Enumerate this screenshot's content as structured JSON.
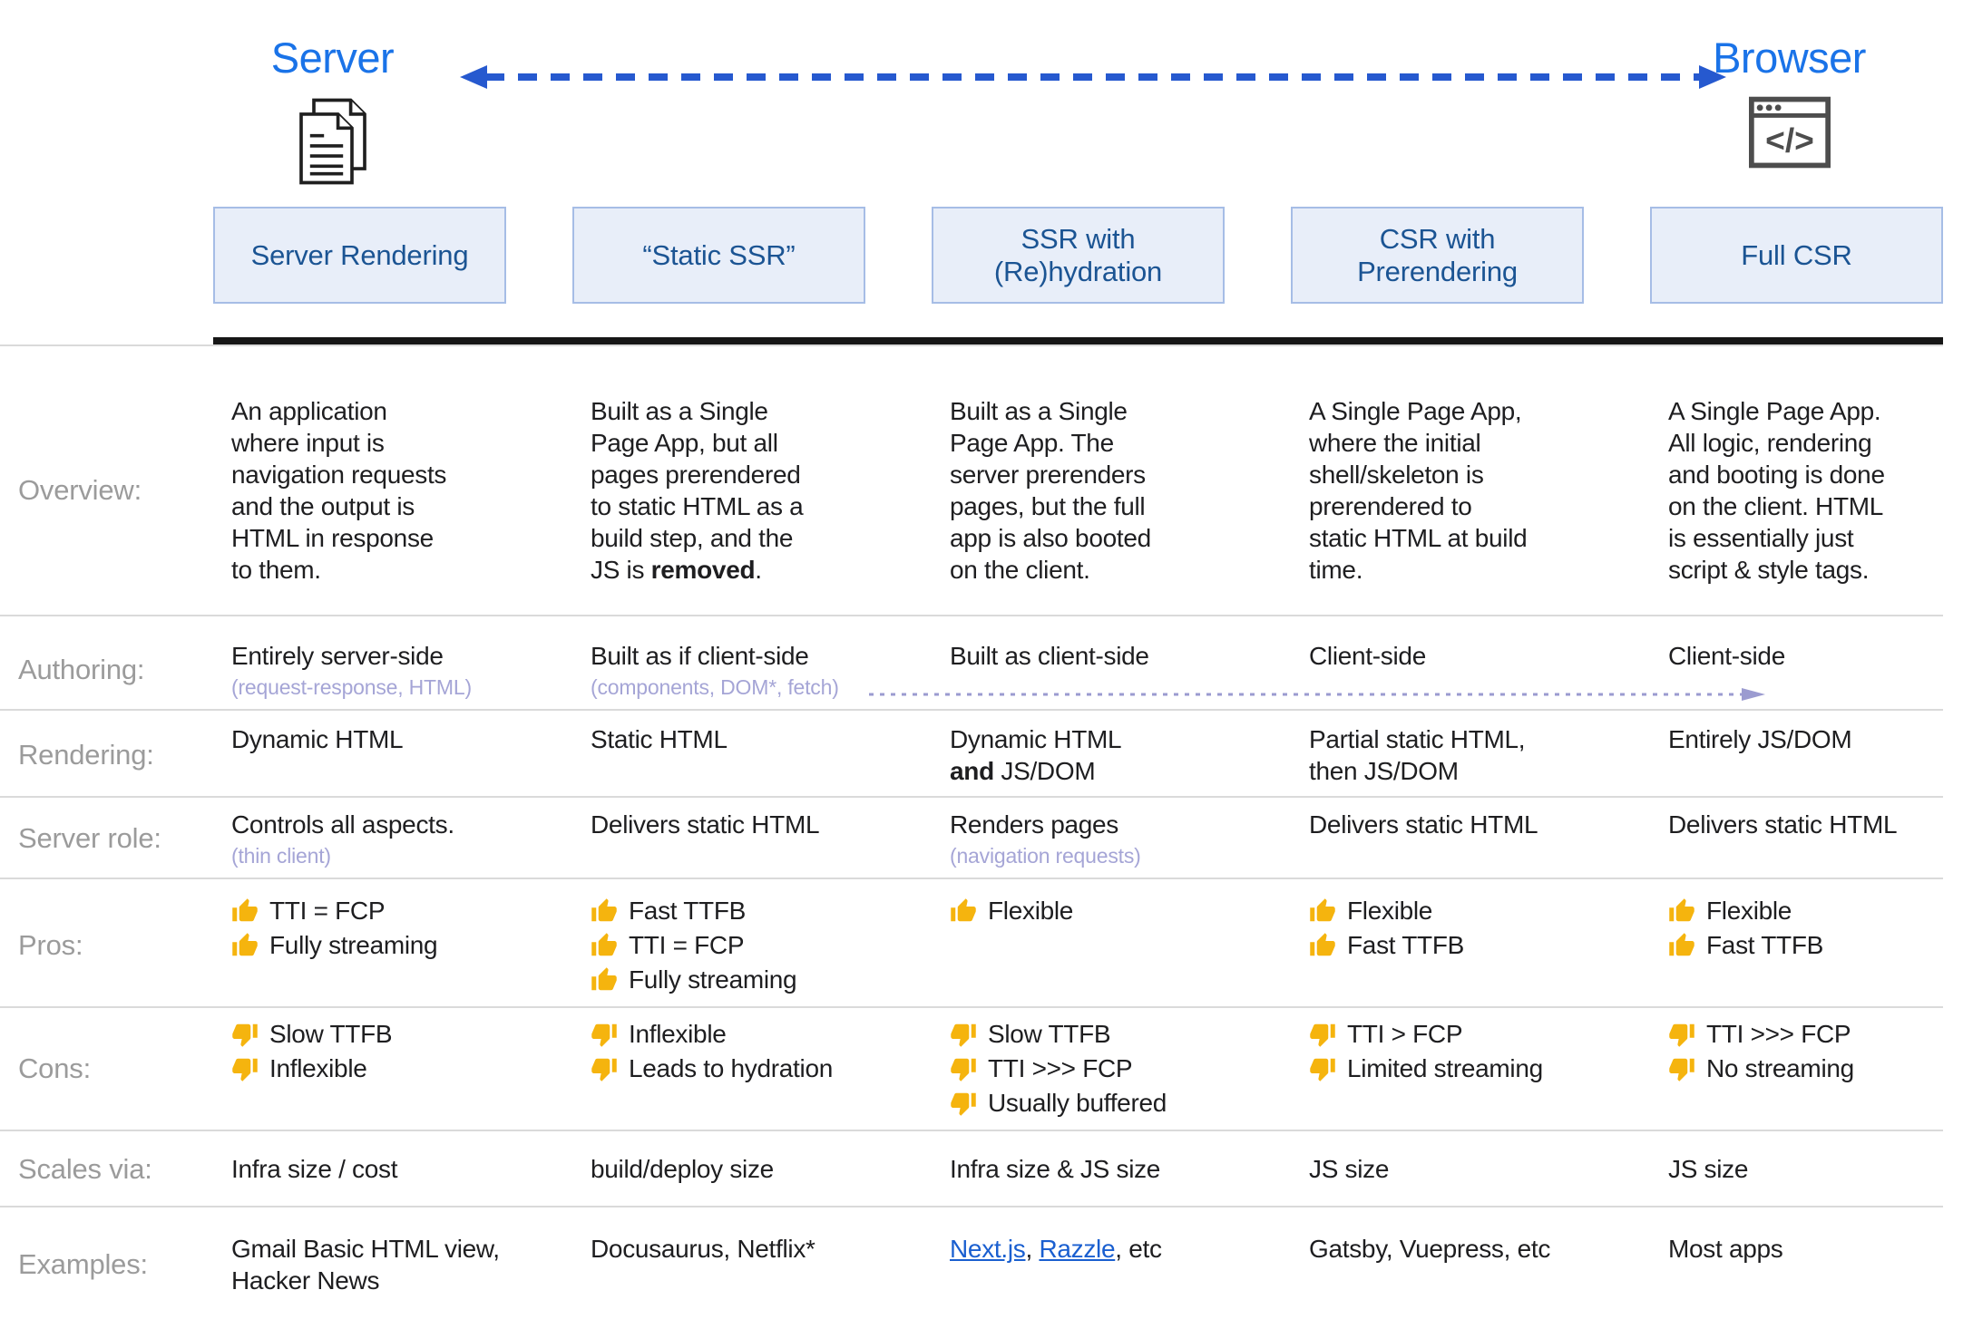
{
  "header": {
    "left_label": "Server",
    "right_label": "Browser"
  },
  "icons": {
    "server": "pages-icon",
    "browser": "browser-window-icon",
    "top_arrow": "double-headed-dashed-arrow",
    "authoring_arrow": "dashed-right-arrow",
    "pros": "thumbs-up-icon",
    "cons": "thumbs-down-icon"
  },
  "colors": {
    "accent_blue": "#1a73e8",
    "arrow_blue": "#2659cf",
    "header_box_fill": "#e8eef9",
    "header_box_border": "#a6bde6",
    "header_box_text": "#1b5493",
    "row_label_gray": "#9b9b9b",
    "body_text": "#1e1e20",
    "subtext_lavender": "#a5a5d6",
    "link_blue": "#1a5fd0",
    "thumb_gold": "#f5b40e",
    "divider_gray": "#dadada",
    "thick_line": "#161616"
  },
  "columns": [
    {
      "title": "Server Rendering"
    },
    {
      "title": "“Static SSR”"
    },
    {
      "title": "SSR with\n(Re)hydration"
    },
    {
      "title": "CSR with\nPrerendering"
    },
    {
      "title": "Full CSR"
    }
  ],
  "rows": [
    {
      "id": "overview",
      "label": "Overview:",
      "type": "text",
      "cells": [
        {
          "text": "An application\nwhere input is\nnavigation requests\nand the output is\nHTML in response\nto them."
        },
        {
          "text": "Built as a Single\nPage App, but all\npages prerendered\nto static HTML as a\nbuild step, and the\nJS is **removed**."
        },
        {
          "text": "Built as a Single\nPage App. The\nserver prerenders\npages, but the full\napp is also booted\non the client."
        },
        {
          "text": "A Single Page App,\nwhere the initial\nshell/skeleton is\nprerendered to\nstatic HTML at build\ntime."
        },
        {
          "text": "A Single Page App.\nAll logic, rendering\nand booting is done\non the client. HTML\nis essentially just\nscript & style tags."
        }
      ]
    },
    {
      "id": "authoring",
      "label": "Authoring:",
      "type": "text",
      "cells": [
        {
          "text": "Entirely server-side",
          "sub": "(request-response, HTML)"
        },
        {
          "text": "Built as if client-side",
          "sub": "(components, DOM*, fetch)"
        },
        {
          "text": "Built as client-side"
        },
        {
          "text": "Client-side"
        },
        {
          "text": "Client-side"
        }
      ]
    },
    {
      "id": "rendering",
      "label": "Rendering:",
      "type": "text",
      "cells": [
        {
          "text": "Dynamic HTML"
        },
        {
          "text": "Static HTML"
        },
        {
          "text": "Dynamic HTML\n**and** JS/DOM"
        },
        {
          "text": "Partial static HTML,\nthen JS/DOM"
        },
        {
          "text": "Entirely JS/DOM"
        }
      ]
    },
    {
      "id": "server_role",
      "label": "Server role:",
      "type": "text",
      "cells": [
        {
          "text": "Controls all aspects.",
          "sub": "(thin client)"
        },
        {
          "text": "Delivers static HTML"
        },
        {
          "text": "Renders pages",
          "sub": "(navigation requests)"
        },
        {
          "text": "Delivers static HTML"
        },
        {
          "text": "Delivers static HTML"
        }
      ]
    },
    {
      "id": "pros",
      "label": "Pros:",
      "type": "list",
      "icon": "thumbs-up-icon",
      "cells": [
        {
          "items": [
            "TTI = FCP",
            "Fully streaming"
          ]
        },
        {
          "items": [
            "Fast TTFB",
            "TTI = FCP",
            "Fully streaming"
          ]
        },
        {
          "items": [
            "Flexible"
          ]
        },
        {
          "items": [
            "Flexible",
            "Fast TTFB"
          ]
        },
        {
          "items": [
            "Flexible",
            "Fast TTFB"
          ]
        }
      ]
    },
    {
      "id": "cons",
      "label": "Cons:",
      "type": "list",
      "icon": "thumbs-down-icon",
      "cells": [
        {
          "items": [
            "Slow TTFB",
            "Inflexible"
          ]
        },
        {
          "items": [
            "Inflexible",
            "Leads to hydration"
          ]
        },
        {
          "items": [
            "Slow TTFB",
            "TTI >>> FCP",
            "Usually buffered"
          ]
        },
        {
          "items": [
            "TTI > FCP",
            "Limited streaming"
          ]
        },
        {
          "items": [
            "TTI >>> FCP",
            "No streaming"
          ]
        }
      ]
    },
    {
      "id": "scales",
      "label": "Scales via:",
      "type": "text",
      "cells": [
        {
          "text": "Infra size / cost"
        },
        {
          "text": "build/deploy size"
        },
        {
          "text": "Infra size & JS size"
        },
        {
          "text": "JS size"
        },
        {
          "text": "JS size"
        }
      ]
    },
    {
      "id": "examples",
      "label": "Examples:",
      "type": "text",
      "cells": [
        {
          "text": "Gmail Basic HTML view,\nHacker News"
        },
        {
          "text": "Docusaurus, Netflix*"
        },
        {
          "text": "[Next.js], [Razzle], etc"
        },
        {
          "text": "Gatsby, Vuepress, etc"
        },
        {
          "text": "Most apps"
        }
      ]
    }
  ]
}
